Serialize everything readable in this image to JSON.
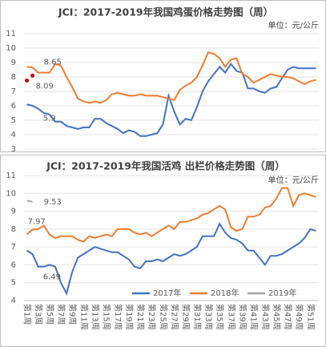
{
  "chart_data": [
    {
      "type": "line",
      "title": "JCI：2017-2019年我国鸡蛋价格走势图（周）",
      "unit": "单位：元/公斤",
      "ylim": [
        3,
        11
      ],
      "yticks": [
        3,
        4,
        5,
        6,
        7,
        8,
        9,
        10,
        11
      ],
      "grid": true,
      "series": [
        {
          "color": "#4472c4",
          "values": [
            6.1,
            6.0,
            5.8,
            5.5,
            5.4,
            4.9,
            4.9,
            4.6,
            4.5,
            4.4,
            4.5,
            4.5,
            5.1,
            5.1,
            4.8,
            4.6,
            4.4,
            4.1,
            4.3,
            4.2,
            3.9,
            3.9,
            4.0,
            4.1,
            4.7,
            6.7,
            5.6,
            4.7,
            5.1,
            5.0,
            5.9,
            7.0,
            7.7,
            8.2,
            8.7,
            8.3,
            8.9,
            8.4,
            8.3,
            7.2,
            7.2,
            7.0,
            6.9,
            7.2,
            7.3,
            7.9,
            8.5,
            8.7,
            8.6,
            8.6,
            8.6,
            8.6
          ]
        },
        {
          "color": "#ed7d31",
          "values": [
            8.7,
            8.65,
            8.3,
            8.3,
            8.3,
            8.9,
            8.8,
            8.0,
            7.3,
            6.5,
            6.3,
            6.2,
            6.3,
            6.2,
            6.4,
            6.8,
            6.9,
            6.8,
            6.7,
            6.7,
            6.8,
            6.7,
            6.7,
            6.7,
            6.6,
            6.5,
            6.4,
            7.1,
            7.4,
            7.6,
            8.0,
            8.8,
            9.7,
            9.6,
            9.3,
            8.7,
            9.2,
            9.3,
            8.2,
            8.0,
            7.6,
            7.8,
            8.0,
            8.2,
            8.1,
            8.0,
            8.0,
            7.9,
            7.7,
            7.5,
            7.7,
            7.8
          ]
        },
        {
          "color": "#c00000",
          "values": [
            7.75,
            8.09,
            null,
            null,
            null,
            null,
            null,
            null,
            null,
            null,
            null,
            null,
            null,
            null,
            null,
            null,
            null,
            null,
            null,
            null,
            null,
            null,
            null,
            null,
            null,
            null,
            null,
            null,
            null,
            null,
            null,
            null,
            null,
            null,
            null,
            null,
            null,
            null,
            null,
            null,
            null,
            null,
            null,
            null,
            null,
            null,
            null,
            null,
            null,
            null,
            null,
            null
          ]
        }
      ],
      "annotations": [
        "8.65",
        "8.09",
        "5.9"
      ]
    },
    {
      "type": "line",
      "title": "JCI：2017-2019年我国活鸡 出栏价格走势图（周）",
      "unit": "单位：元/公斤",
      "ylim": [
        4,
        11
      ],
      "yticks": [
        4,
        5,
        6,
        7,
        8,
        9,
        10,
        11
      ],
      "grid": true,
      "categories": [
        "第1周",
        null,
        "第3周",
        null,
        "第5周",
        null,
        "第7周",
        null,
        "第9周",
        null,
        "第11周",
        null,
        "第13周",
        null,
        "第15周",
        null,
        "第17周",
        null,
        "第19周",
        null,
        "第21周",
        null,
        "第23周",
        null,
        "第25周",
        null,
        "第27周",
        null,
        "第29周",
        null,
        "第31周",
        null,
        "第33周",
        null,
        "第35周",
        null,
        "第37周",
        null,
        "第39周",
        null,
        "第41周",
        null,
        "第43周",
        null,
        "第45周",
        null,
        "第47周",
        null,
        "第49周",
        null,
        "第51周",
        null
      ],
      "series": [
        {
          "name": "2017年",
          "color": "#4472c4",
          "values": [
            6.8,
            6.6,
            5.9,
            5.9,
            6.0,
            5.9,
            5.0,
            4.4,
            5.6,
            6.4,
            6.6,
            6.8,
            7.0,
            6.9,
            6.8,
            6.7,
            6.7,
            6.5,
            6.3,
            5.9,
            5.8,
            6.2,
            6.2,
            6.3,
            6.2,
            6.4,
            6.6,
            6.5,
            6.6,
            6.8,
            7.0,
            7.6,
            7.6,
            7.6,
            8.3,
            7.8,
            7.5,
            7.4,
            7.2,
            6.8,
            6.8,
            6.4,
            6.0,
            6.5,
            6.5,
            6.6,
            6.8,
            7.0,
            7.2,
            7.5,
            8.0,
            7.9
          ]
        },
        {
          "name": "2018年",
          "color": "#ed7d31",
          "values": [
            7.7,
            7.97,
            8.0,
            8.2,
            7.7,
            7.5,
            7.6,
            7.6,
            7.6,
            7.4,
            7.3,
            7.6,
            7.5,
            7.6,
            7.7,
            7.6,
            8.0,
            8.0,
            8.0,
            7.8,
            7.7,
            7.8,
            7.6,
            7.8,
            8.0,
            8.2,
            8.0,
            8.4,
            8.4,
            8.5,
            8.6,
            8.8,
            8.9,
            9.1,
            9.3,
            9.1,
            8.1,
            7.9,
            8.0,
            8.7,
            8.7,
            8.8,
            9.2,
            9.3,
            9.7,
            10.3,
            10.3,
            9.3,
            9.9,
            10.0,
            9.9,
            9.8
          ]
        },
        {
          "name": "2019年",
          "color": "#a5a5a5",
          "values": [
            9.6,
            9.53,
            null,
            null,
            null,
            null,
            null,
            null,
            null,
            null,
            null,
            null,
            null,
            null,
            null,
            null,
            null,
            null,
            null,
            null,
            null,
            null,
            null,
            null,
            null,
            null,
            null,
            null,
            null,
            null,
            null,
            null,
            null,
            null,
            null,
            null,
            null,
            null,
            null,
            null,
            null,
            null,
            null,
            null,
            null,
            null,
            null,
            null,
            null,
            null,
            null,
            null
          ]
        }
      ],
      "annotations": [
        "7.97",
        "9.53",
        "6.49"
      ]
    }
  ]
}
